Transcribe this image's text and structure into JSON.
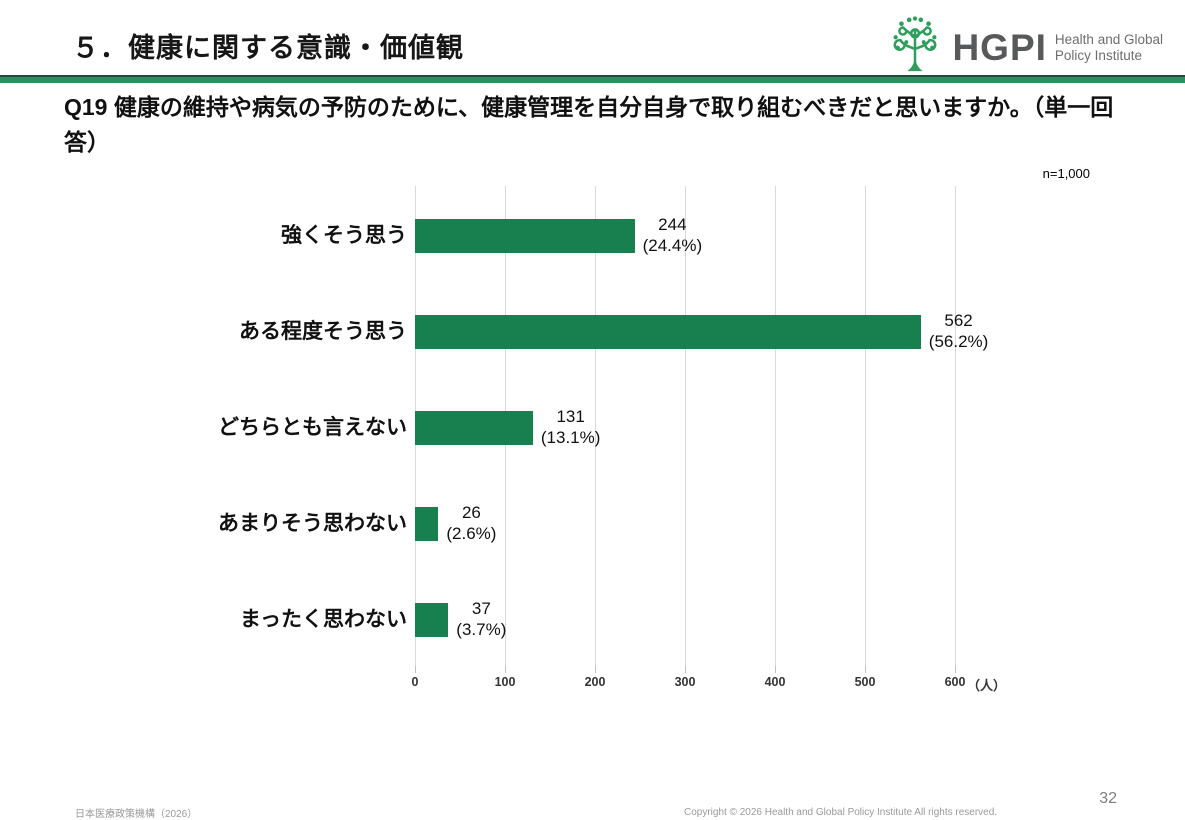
{
  "header": {
    "title": "５．健康に関する意識・価値観",
    "logo": {
      "abbr": "HGPI",
      "subtitle_line1": "Health and Global",
      "subtitle_line2": "Policy Institute",
      "tree_color": "#2e9e5c"
    }
  },
  "question": {
    "label": "Q19",
    "text": "健康の維持や病気の予防のために、健康管理を自分自身で取り組むべきだと思いますか。（単一回答）",
    "sample_size": "n=1,000"
  },
  "chart_data": {
    "type": "bar",
    "orientation": "horizontal",
    "title": "",
    "categories": [
      "強くそう思う",
      "ある程度そう思う",
      "どちらとも言えない",
      "あまりそう思わない",
      "まったく思わない"
    ],
    "values": [
      244,
      562,
      131,
      26,
      37
    ],
    "value_labels": [
      "244",
      "562",
      "131",
      "26",
      "37"
    ],
    "percent_labels": [
      "(24.4%)",
      "(56.2%)",
      "(13.1%)",
      "(2.6%)",
      "(3.7%)"
    ],
    "xlim": [
      0,
      600
    ],
    "xticks": [
      0,
      100,
      200,
      300,
      400,
      500,
      600
    ],
    "x_unit": "（人）",
    "bar_color": "#18804e",
    "grid": true,
    "legend": "none"
  },
  "footer": {
    "left": "日本医療政策機構（2026）",
    "copyright": "Copyright © 2026 Health and Global Policy Institute  All rights reserved.",
    "page": "32"
  }
}
